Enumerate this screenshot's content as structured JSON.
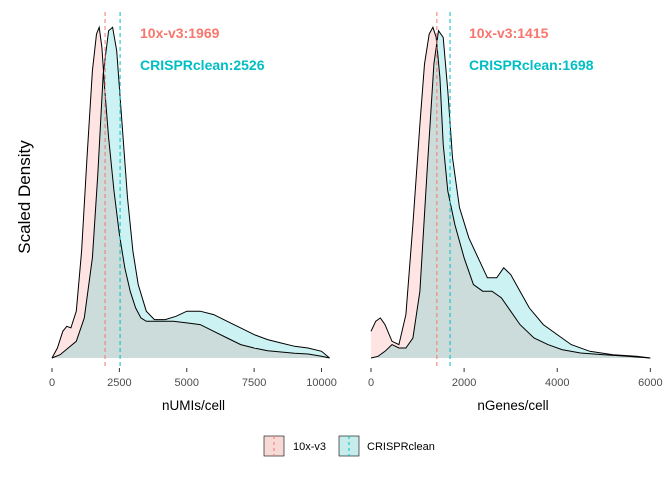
{
  "figure": {
    "ylabel": "Scaled Density",
    "legend": {
      "position": "bottom",
      "entries": [
        "10x-v3",
        "CRISPRclean"
      ]
    }
  },
  "colors": {
    "10x-v3": "#F8766D",
    "CRISPRclean": "#00BFC4",
    "fill_10x": "#f7d9d6",
    "fill_crispr": "#c6ecec",
    "overlap": "#cddfdc",
    "outline": "#000000"
  },
  "chart_data": [
    {
      "type": "area",
      "xlabel": "nUMIs/cell",
      "ylabel": "Scaled Density",
      "xlim": [
        0,
        10500
      ],
      "ylim": [
        0,
        1.0
      ],
      "xticks": [
        0,
        2500,
        5000,
        7500,
        10000
      ],
      "xtick_labels": [
        "0",
        "2500",
        "5000",
        "7500",
        "10000"
      ],
      "grid": false,
      "annotations": [
        "10x-v3:1969",
        "CRISPRclean:2526"
      ],
      "medians": {
        "10x-v3": 1969,
        "CRISPRclean": 2526
      },
      "series": [
        {
          "name": "10x-v3",
          "x": [
            0,
            200,
            400,
            550,
            700,
            900,
            1100,
            1300,
            1500,
            1650,
            1750,
            1850,
            1950,
            2100,
            2300,
            2500,
            2700,
            2900,
            3100,
            3300,
            3500,
            4000,
            4500,
            5000,
            5500,
            6000,
            6500,
            7000,
            7500,
            8000,
            8500,
            9000,
            9500,
            10000,
            10300
          ],
          "y": [
            0.0,
            0.03,
            0.08,
            0.095,
            0.09,
            0.14,
            0.32,
            0.6,
            0.86,
            0.97,
            0.99,
            0.93,
            0.81,
            0.66,
            0.5,
            0.37,
            0.27,
            0.2,
            0.15,
            0.12,
            0.11,
            0.11,
            0.11,
            0.105,
            0.1,
            0.08,
            0.06,
            0.04,
            0.03,
            0.022,
            0.018,
            0.014,
            0.012,
            0.005,
            0.0
          ]
        },
        {
          "name": "CRISPRclean",
          "x": [
            0,
            300,
            600,
            900,
            1200,
            1500,
            1700,
            1900,
            2100,
            2250,
            2400,
            2600,
            2800,
            3000,
            3200,
            3500,
            3800,
            4200,
            4600,
            5000,
            5500,
            6000,
            6500,
            7000,
            7500,
            8000,
            8500,
            9000,
            9500,
            10000,
            10300
          ],
          "y": [
            0.0,
            0.01,
            0.03,
            0.05,
            0.12,
            0.3,
            0.55,
            0.85,
            0.98,
            0.99,
            0.92,
            0.7,
            0.48,
            0.32,
            0.22,
            0.14,
            0.115,
            0.115,
            0.125,
            0.14,
            0.14,
            0.13,
            0.11,
            0.09,
            0.07,
            0.055,
            0.045,
            0.035,
            0.03,
            0.02,
            0.0
          ]
        }
      ]
    },
    {
      "type": "area",
      "xlabel": "nGenes/cell",
      "ylabel": "Scaled Density",
      "xlim": [
        0,
        6100
      ],
      "ylim": [
        0,
        1.0
      ],
      "xticks": [
        0,
        2000,
        4000,
        6000
      ],
      "xtick_labels": [
        "0",
        "2000",
        "4000",
        "6000"
      ],
      "grid": false,
      "annotations": [
        "10x-v3:1415",
        "CRISPRclean:1698"
      ],
      "medians": {
        "10x-v3": 1415,
        "CRISPRclean": 1698
      },
      "series": [
        {
          "name": "10x-v3",
          "x": [
            0,
            100,
            200,
            300,
            450,
            600,
            750,
            900,
            1050,
            1150,
            1250,
            1330,
            1400,
            1480,
            1550,
            1650,
            1800,
            2000,
            2200,
            2400,
            2600,
            2800,
            3000,
            3200,
            3500,
            3800,
            4100,
            4500,
            5000,
            5500,
            6000
          ],
          "y": [
            0.08,
            0.11,
            0.12,
            0.1,
            0.05,
            0.04,
            0.13,
            0.4,
            0.7,
            0.88,
            0.97,
            0.99,
            0.96,
            0.84,
            0.64,
            0.5,
            0.4,
            0.3,
            0.22,
            0.2,
            0.2,
            0.18,
            0.14,
            0.1,
            0.06,
            0.04,
            0.025,
            0.015,
            0.01,
            0.005,
            0.0
          ]
        },
        {
          "name": "CRISPRclean",
          "x": [
            0,
            150,
            300,
            450,
            600,
            750,
            900,
            1050,
            1200,
            1350,
            1450,
            1550,
            1650,
            1750,
            1900,
            2100,
            2300,
            2500,
            2700,
            2850,
            3000,
            3200,
            3400,
            3700,
            4000,
            4300,
            4700,
            5200,
            5700,
            6000
          ],
          "y": [
            0.0,
            0.005,
            0.02,
            0.04,
            0.03,
            0.03,
            0.06,
            0.2,
            0.55,
            0.88,
            0.98,
            0.96,
            0.8,
            0.6,
            0.45,
            0.36,
            0.3,
            0.24,
            0.24,
            0.27,
            0.25,
            0.2,
            0.15,
            0.1,
            0.07,
            0.04,
            0.02,
            0.01,
            0.005,
            0.0
          ]
        }
      ]
    }
  ]
}
